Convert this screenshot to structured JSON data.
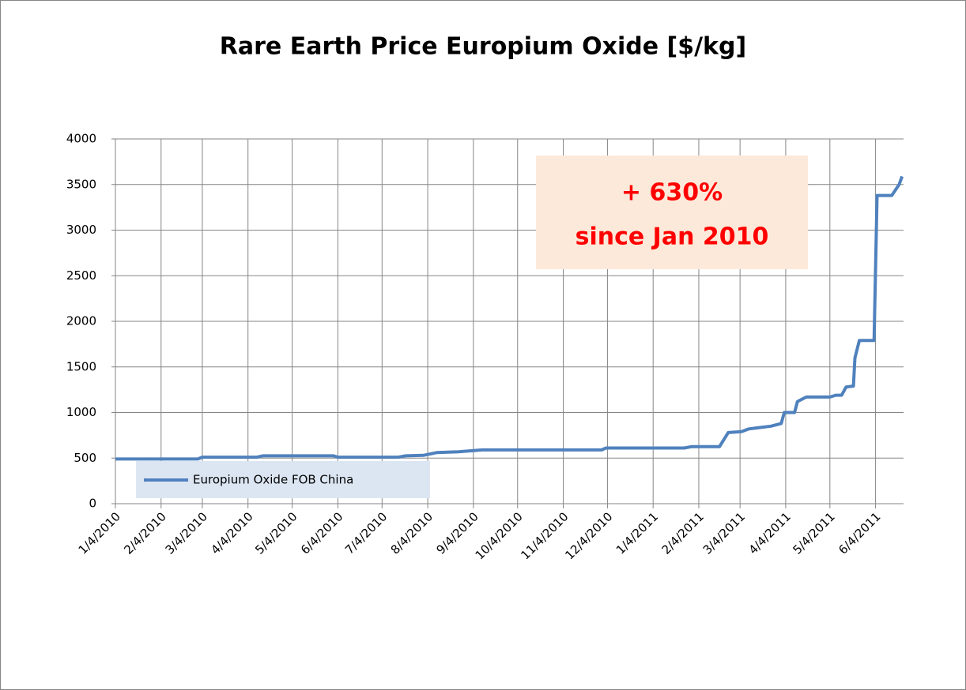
{
  "chart_data": {
    "type": "line",
    "title": "Rare Earth Price Europium Oxide [$/kg]",
    "annotation": [
      "+ 630%",
      "since Jan 2010"
    ],
    "x": [
      "1/4/2010",
      "3/1/2010",
      "3/4/2010",
      "4/10/2010",
      "4/14/2010",
      "6/1/2010",
      "6/4/2010",
      "7/15/2010",
      "7/20/2010",
      "8/1/2010",
      "8/10/2010",
      "8/25/2010",
      "9/10/2010",
      "11/30/2010",
      "12/3/2010",
      "1/25/2011",
      "1/30/2011",
      "2/18/2011",
      "2/24/2011",
      "3/5/2011",
      "3/10/2011",
      "3/15/2011",
      "3/25/2011",
      "4/1/2011",
      "4/3/2011",
      "4/10/2011",
      "4/12/2011",
      "4/18/2011",
      "5/4/2011",
      "5/8/2011",
      "5/12/2011",
      "5/15/2011",
      "5/20/2011",
      "5/21/2011",
      "5/24/2011",
      "6/3/2011",
      "6/5/2011",
      "6/15/2011",
      "6/20/2011",
      "6/22/2011"
    ],
    "series": [
      {
        "name": "Europium Oxide FOB China",
        "color": "#4f81bd",
        "values": [
          490,
          490,
          510,
          510,
          525,
          525,
          510,
          510,
          525,
          530,
          560,
          570,
          590,
          590,
          610,
          610,
          625,
          625,
          780,
          790,
          820,
          830,
          850,
          880,
          1000,
          1000,
          1120,
          1170,
          1170,
          1190,
          1190,
          1280,
          1290,
          1600,
          1790,
          1790,
          3380,
          3380,
          3500,
          3590
        ]
      }
    ],
    "xlim": [
      "1/4/2010",
      "6/23/2011"
    ],
    "xticks": [
      "1/4/2010",
      "2/4/2010",
      "3/4/2010",
      "4/4/2010",
      "5/4/2010",
      "6/4/2010",
      "7/4/2010",
      "8/4/2010",
      "9/4/2010",
      "10/4/2010",
      "11/4/2010",
      "12/4/2010",
      "1/4/2011",
      "2/4/2011",
      "3/4/2011",
      "4/4/2011",
      "5/4/2011",
      "6/4/2011"
    ],
    "ylim": [
      0,
      4000
    ],
    "yticks": [
      0,
      500,
      1000,
      1500,
      2000,
      2500,
      3000,
      3500,
      4000
    ],
    "grid": true,
    "legend": "bottom-left"
  }
}
